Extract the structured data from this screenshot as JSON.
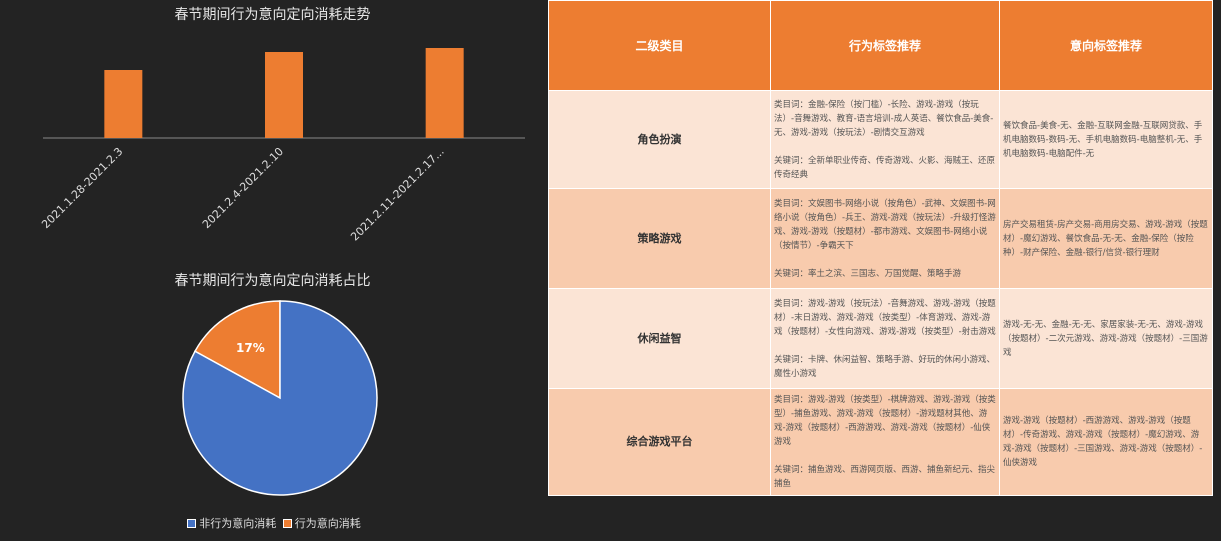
{
  "chart_data": [
    {
      "type": "bar",
      "title": "春节期间行为意向定向消耗走势",
      "categories": [
        "2021.1.28-2021.2.3",
        "2021.2.4-2021.2.10",
        "2021.2.11-2021.2.17..."
      ],
      "values": [
        68,
        86,
        90
      ],
      "color": "#ED7D31",
      "grid": false,
      "y_axis_shown": false
    },
    {
      "type": "pie",
      "title": "春节期间行为意向定向消耗占比",
      "slices": [
        {
          "label": "非行为意向消耗",
          "value": 83,
          "color": "#4472C4"
        },
        {
          "label": "行为意向消耗",
          "value": 17,
          "color": "#ED7D31"
        }
      ],
      "data_labels": [
        "17%"
      ],
      "legend": "bottom"
    }
  ],
  "table": {
    "headers": [
      "二级类目",
      "行为标签推荐",
      "意向标签推荐"
    ],
    "rows": [
      {
        "category": "角色扮演",
        "behavior": "类目词：金融-保险（按门槛）-长险、游戏-游戏（按玩法）-音舞游戏、教育-语言培训-成人英语、餐饮食品-美食-无、游戏-游戏（按玩法）-剧情交互游戏",
        "keywords": "关键词：全新单职业传奇、传奇游戏、火影、海贼王、还原传奇经典",
        "intent": "餐饮食品-美食-无、金融-互联网金融-互联网贷款、手机电脑数码-数码-无、手机电脑数码-电脑整机-无、手机电脑数码-电脑配件-无"
      },
      {
        "category": "策略游戏",
        "behavior": "类目词：文娱图书-网络小说（按角色）-武神、文娱图书-网络小说（按角色）-兵王、游戏-游戏（按玩法）-升级打怪游戏、游戏-游戏（按题材）-都市游戏、文娱图书-网络小说（按情节）-争霸天下",
        "keywords": "关键词：率土之滨、三国志、万国觉醒、策略手游",
        "intent": "房产交易租赁-房产交易-商用房交易、游戏-游戏（按题材）-魔幻游戏、餐饮食品-无-无、金融-保险（按险种）-财产保险、金融-银行/信贷-银行理财"
      },
      {
        "category": "休闲益智",
        "behavior": "类目词：游戏-游戏（按玩法）-音舞游戏、游戏-游戏（按题材）-末日游戏、游戏-游戏（按类型）-体育游戏、游戏-游戏（按题材）-女性向游戏、游戏-游戏（按类型）-射击游戏",
        "keywords": "关键词：卡牌、休闲益智、策略手游、好玩的休闲小游戏、魔性小游戏",
        "intent": "游戏-无-无、金融-无-无、家居家装-无-无、游戏-游戏（按题材）-二次元游戏、游戏-游戏（按题材）-三国游戏"
      },
      {
        "category": "综合游戏平台",
        "behavior": "类目词：游戏-游戏（按类型）-棋牌游戏、游戏-游戏（按类型）-捕鱼游戏、游戏-游戏（按题材）-游戏题材其他、游戏-游戏（按题材）-西游游戏、游戏-游戏（按题材）-仙侠游戏",
        "keywords": "关键词：捕鱼游戏、西游网页版、西游、捕鱼新纪元、指尖捕鱼",
        "intent": "游戏-游戏（按题材）-西游游戏、游戏-游戏（按题材）-传奇游戏、游戏-游戏（按题材）-魔幻游戏、游戏-游戏（按题材）-三国游戏、游戏-游戏（按题材）-仙侠游戏"
      }
    ]
  }
}
